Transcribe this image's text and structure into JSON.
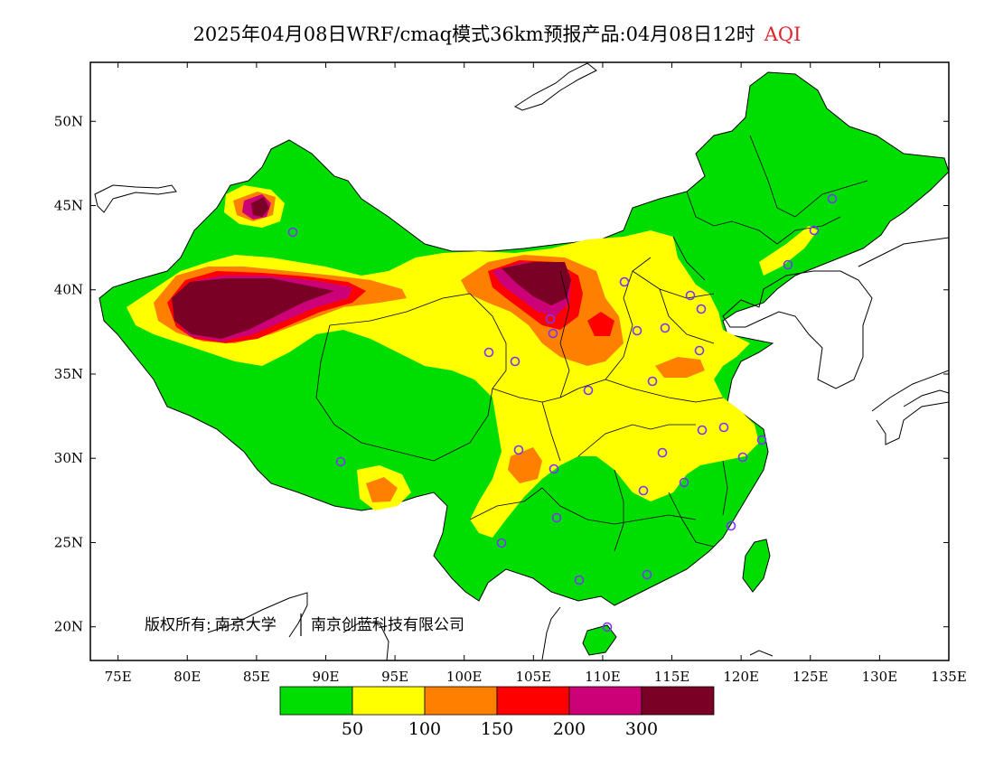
{
  "title": {
    "main": "2025年04月08日WRF/cmaq模式36km预报产品:04月08日12时",
    "variable": "AQI"
  },
  "copyright": {
    "prefix": "版权所有:",
    "org1": "南京大学",
    "org2": "南京创蓝科技有限公司"
  },
  "axes": {
    "lat_labels": [
      "50N",
      "45N",
      "40N",
      "35N",
      "30N",
      "25N",
      "20N"
    ],
    "lon_labels": [
      "75E",
      "80E",
      "85E",
      "90E",
      "95E",
      "100E",
      "105E",
      "110E",
      "115E",
      "120E",
      "125E",
      "130E",
      "135E"
    ],
    "lat_range": [
      18,
      53.5
    ],
    "lon_range": [
      73,
      135
    ]
  },
  "legend": {
    "colors": [
      "#00dd00",
      "#ffff00",
      "#ff8000",
      "#ff0000",
      "#cc0077",
      "#7a0026"
    ],
    "labels": [
      "50",
      "100",
      "150",
      "200",
      "300"
    ]
  },
  "colors": {
    "good": "#00dd00",
    "moderate": "#ffff00",
    "usg": "#ff8000",
    "unhealthy": "#ff0000",
    "very_unhealthy": "#cc0077",
    "hazardous": "#7a0026",
    "station_marker": "#7a33ff",
    "title_variable": "#e0242c"
  },
  "map_features": [
    "china-aqi-field",
    "provincial-boundaries",
    "coastlines",
    "monitoring-stations"
  ]
}
